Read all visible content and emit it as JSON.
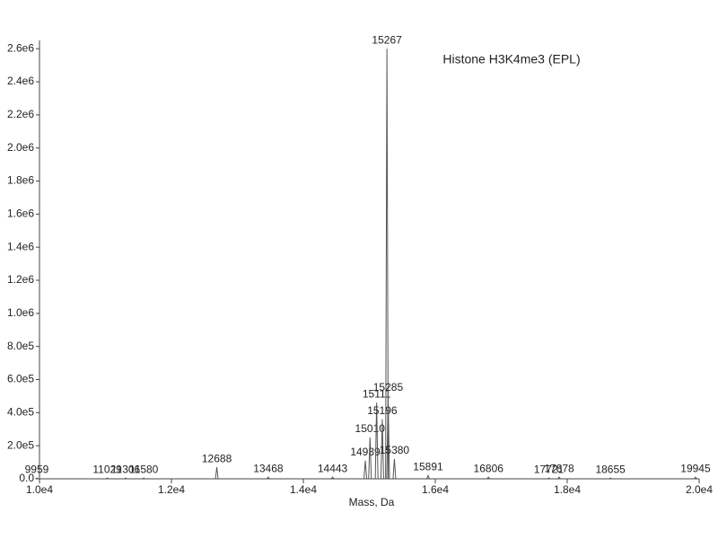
{
  "chart_data": {
    "type": "spectrum",
    "title": "Histone H3K4me3 (EPL)",
    "x_label": "Mass, Da",
    "color": "#555555",
    "x": [
      9959,
      11029,
      11306,
      11580,
      12688,
      13468,
      14443,
      14939,
      15010,
      15111,
      15196,
      15267,
      15285,
      15380,
      15891,
      16806,
      17721,
      17878,
      18655,
      19945
    ],
    "values": [
      5000,
      5000,
      5000,
      5000,
      70000,
      10000,
      10000,
      110000,
      250000,
      460000,
      360000,
      2600000,
      500000,
      120000,
      20000,
      10000,
      5000,
      10000,
      5000,
      10000
    ],
    "xlim": [
      10000,
      20000
    ],
    "xticks": [
      {
        "value": 10000,
        "label": "1.0e4"
      },
      {
        "value": 12000,
        "label": "1.2e4"
      },
      {
        "value": 14000,
        "label": "1.4e4"
      },
      {
        "value": 16000,
        "label": "1.6e4"
      },
      {
        "value": 18000,
        "label": "1.8e4"
      },
      {
        "value": 20000,
        "label": "2.0e4"
      }
    ],
    "ylim": [
      0,
      2650000
    ],
    "yticks": [
      {
        "value": 0,
        "label": "0.0"
      },
      {
        "value": 200000,
        "label": "2.0e5"
      },
      {
        "value": 400000,
        "label": "4.0e5"
      },
      {
        "value": 600000,
        "label": "6.0e5"
      },
      {
        "value": 800000,
        "label": "8.0e5"
      },
      {
        "value": 1000000,
        "label": "1.0e6"
      },
      {
        "value": 1200000,
        "label": "1.2e6"
      },
      {
        "value": 1400000,
        "label": "1.4e6"
      },
      {
        "value": 1600000,
        "label": "1.6e6"
      },
      {
        "value": 1800000,
        "label": "1.8e6"
      },
      {
        "value": 2000000,
        "label": "2.0e6"
      },
      {
        "value": 2200000,
        "label": "2.2e6"
      },
      {
        "value": 2400000,
        "label": "2.4e6"
      },
      {
        "value": 2600000,
        "label": "2.6e6"
      }
    ]
  }
}
